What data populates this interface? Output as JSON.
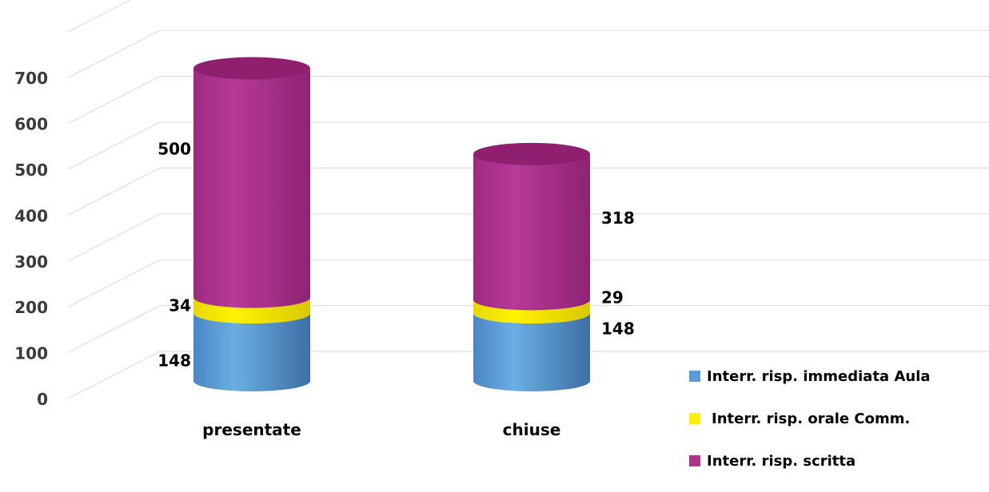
{
  "chart_data": {
    "type": "bar",
    "stacked": true,
    "style": "3d-cylinder",
    "categories": [
      "presentate",
      "chiuse"
    ],
    "series": [
      {
        "name": "Interr. risp. immediata Aula",
        "values": [
          148,
          148
        ],
        "color": "#5b9bd5"
      },
      {
        "name": "Interr. risp. orale Comm.",
        "values": [
          34,
          29
        ],
        "color": "#ffee00"
      },
      {
        "name": "Interr. risp. scritta",
        "values": [
          500,
          318
        ],
        "color": "#b0338f"
      }
    ],
    "yticks": [
      "0",
      "100",
      "200",
      "300",
      "400",
      "500",
      "600",
      "700"
    ],
    "ylim": [
      0,
      800
    ],
    "grid": true,
    "legend_position": "bottom-right"
  }
}
